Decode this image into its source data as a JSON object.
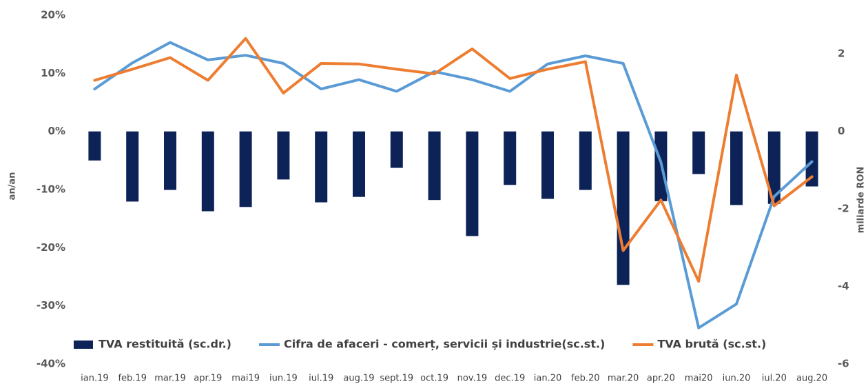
{
  "chart_data": {
    "type": "bar",
    "y_label": "an/an",
    "y2_label": "miliarde RON",
    "categories": [
      "ian.19",
      "feb.19",
      "mar.19",
      "apr.19",
      "mai19",
      "iun.19",
      "iul.19",
      "aug.19",
      "sept.19",
      "oct.19",
      "nov.19",
      "dec.19",
      "ian.20",
      "feb.20",
      "mar.20",
      "apr.20",
      "mai20",
      "iun.20",
      "iul.20",
      "aug.20"
    ],
    "series": [
      {
        "name": "TVA restituită (sc.dr.)",
        "type": "bar",
        "axis": "y2",
        "color": "#0d2358",
        "values": [
          -0.75,
          -1.81,
          -1.51,
          -2.06,
          -1.95,
          -1.24,
          -1.83,
          -1.69,
          -0.94,
          -1.77,
          -2.7,
          -1.38,
          -1.74,
          -1.51,
          -3.96,
          -1.8,
          -1.1,
          -1.9,
          -1.87,
          -1.42
        ]
      },
      {
        "name": "Cifra de afaceri - comerț, servicii și industrie(sc.st.)",
        "type": "line",
        "color": "#5b9bd5",
        "values": [
          7.3,
          11.8,
          15.3,
          12.3,
          13.1,
          11.7,
          7.3,
          8.9,
          6.9,
          10.3,
          8.9,
          6.9,
          11.6,
          13.0,
          11.7,
          -5.3,
          -33.8,
          -29.7,
          -11.2,
          -5.2
        ]
      },
      {
        "name": "TVA brută (sc.st.)",
        "type": "line",
        "color": "#ed7d31",
        "values": [
          8.8,
          10.7,
          12.7,
          8.8,
          16.0,
          6.6,
          11.7,
          11.6,
          10.7,
          9.9,
          14.2,
          9.1,
          10.7,
          12.0,
          -20.5,
          -11.8,
          -25.8,
          9.7,
          -12.8,
          -7.8
        ]
      }
    ],
    "ylim": [
      -40,
      20
    ],
    "yticks": [
      {
        "value": -40,
        "label": "-40%"
      },
      {
        "value": -30,
        "label": "-30%"
      },
      {
        "value": -20,
        "label": "-20%"
      },
      {
        "value": -10,
        "label": "-10%"
      },
      {
        "value": 0,
        "label": "0%"
      },
      {
        "value": 10,
        "label": "10%"
      },
      {
        "value": 20,
        "label": "20%"
      }
    ],
    "y2lim": [
      -6,
      3
    ],
    "y2ticks": [
      -6,
      -4,
      -2,
      0,
      2
    ],
    "legend": "bottom"
  }
}
